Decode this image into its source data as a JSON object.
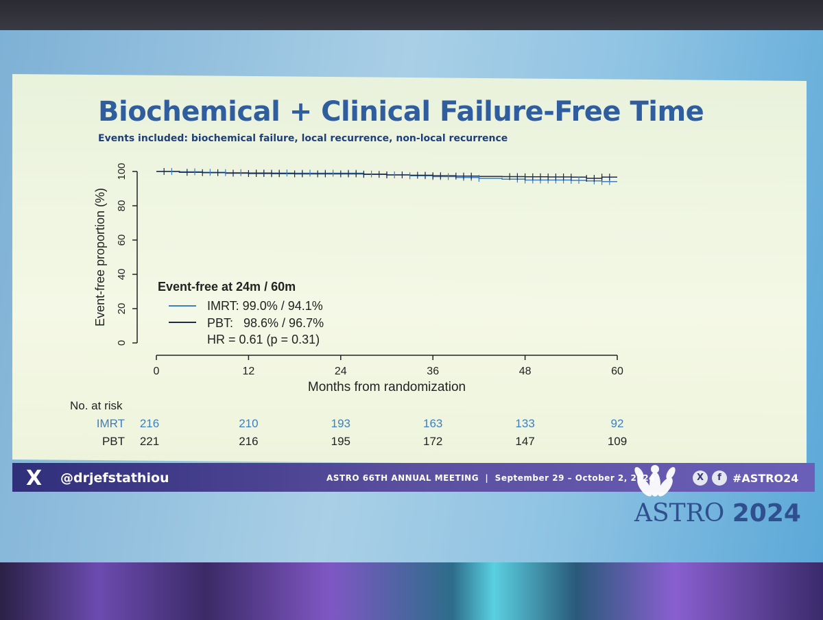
{
  "slide": {
    "title": "Biochemical + Clinical Failure-Free Time",
    "subtitle": "Events included: biochemical failure, local recurrence, non-local recurrence"
  },
  "legend": {
    "header": "Event-free at 24m / 60m",
    "imrt": "IMRT: 99.0% / 94.1%",
    "pbt": "PBT:   98.6% / 96.7%",
    "hr": "HR = 0.61 (p = 0.31)",
    "imrt_color": "#3d7fbf",
    "pbt_color": "#1e2a4a"
  },
  "risk_table": {
    "header": "No. at risk",
    "rows": [
      {
        "label": "IMRT",
        "values": [
          "216",
          "210",
          "193",
          "163",
          "133",
          "92"
        ],
        "color": "#3d7fbf"
      },
      {
        "label": "PBT",
        "values": [
          "221",
          "216",
          "195",
          "172",
          "147",
          "109"
        ],
        "color": "#222222"
      }
    ]
  },
  "footer": {
    "handle": "@drjefstathiou",
    "meeting": "ASTRO 66TH ANNUAL MEETING  |  September 29 – October 2, 2024",
    "hashtag": "#ASTRO24",
    "x_glyph": "X",
    "f_glyph": "f"
  },
  "logo": {
    "text": "ASTRO",
    "year": "2024"
  },
  "chart_data": {
    "type": "line",
    "title": "",
    "xlabel": "Months from randomization",
    "ylabel": "Event-free proportion (%)",
    "xlim": [
      0,
      60
    ],
    "ylim": [
      0,
      100
    ],
    "xticks": [
      0,
      12,
      24,
      36,
      48,
      60
    ],
    "yticks": [
      0,
      20,
      40,
      60,
      80,
      100
    ],
    "grid": false,
    "legend_position": "bottom-left",
    "series": [
      {
        "name": "IMRT",
        "x": [
          0,
          3,
          6,
          9,
          12,
          15,
          18,
          21,
          24,
          27,
          30,
          33,
          36,
          39,
          42,
          45,
          48,
          51,
          54,
          56,
          58,
          60
        ],
        "y": [
          100,
          99.8,
          99.5,
          99.3,
          99.2,
          99.1,
          99.0,
          99.0,
          99.0,
          98.5,
          98.0,
          97.5,
          97.0,
          96.5,
          96.0,
          95.5,
          95.0,
          95.0,
          94.8,
          94.5,
          94.1,
          94.1
        ],
        "censor_x": [
          2,
          5,
          7,
          9,
          11,
          13,
          14,
          15,
          16,
          17,
          19,
          20,
          22,
          23,
          25,
          26,
          27,
          28,
          30,
          31,
          33,
          35,
          36,
          37,
          38,
          40,
          41,
          42,
          47,
          48,
          49,
          50,
          51,
          52,
          53,
          54,
          55,
          57,
          58,
          59
        ]
      },
      {
        "name": "PBT",
        "x": [
          0,
          3,
          6,
          9,
          12,
          15,
          18,
          21,
          24,
          27,
          30,
          33,
          36,
          39,
          42,
          45,
          48,
          51,
          54,
          56,
          58,
          60
        ],
        "y": [
          100,
          99.5,
          99.3,
          99.0,
          98.8,
          98.7,
          98.6,
          98.6,
          98.6,
          98.3,
          98.0,
          97.8,
          97.5,
          97.3,
          97.1,
          97.0,
          96.9,
          96.8,
          96.7,
          96.0,
          96.7,
          96.7
        ],
        "censor_x": [
          1,
          4,
          6,
          8,
          10,
          12,
          13,
          14,
          15,
          16,
          18,
          19,
          21,
          22,
          24,
          25,
          26,
          27,
          29,
          30,
          32,
          34,
          35,
          36,
          37,
          39,
          40,
          41,
          46,
          47,
          48,
          49,
          50,
          51,
          52,
          53,
          54,
          56,
          57,
          58,
          59
        ]
      }
    ]
  }
}
